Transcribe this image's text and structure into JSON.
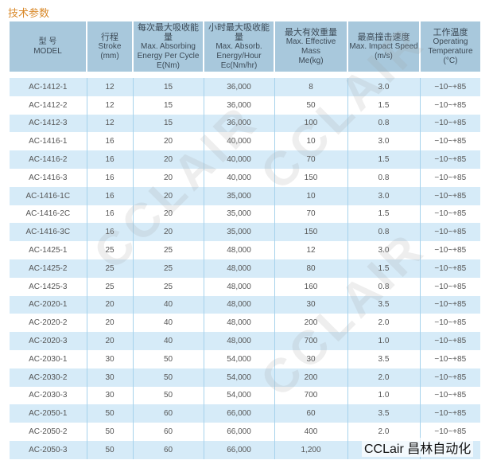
{
  "title": "技术参数",
  "headers": [
    [
      "型 号",
      "MODEL"
    ],
    [
      "行程",
      "Stroke",
      "(mm)"
    ],
    [
      "每次最大吸收能量",
      "Max. Absorbing",
      "Energy Per Cycle",
      "E(Nm)"
    ],
    [
      "小时最大吸收能量",
      "Max. Absorb.",
      "Energy/Hour",
      "Ec(Nm/hr)"
    ],
    [
      "最大有效重量",
      "Max. Effective Mass",
      "Me(kg)"
    ],
    [
      "最高撞击速度",
      "Max. Impact Speed",
      "(m/s)"
    ],
    [
      "工作温度",
      "Operating",
      "Temperature",
      "(°C)"
    ]
  ],
  "rows": [
    [
      "AC-1412-1",
      "12",
      "15",
      "36,000",
      "8",
      "3.0",
      "−10~+85"
    ],
    [
      "AC-1412-2",
      "12",
      "15",
      "36,000",
      "50",
      "1.5",
      "−10~+85"
    ],
    [
      "AC-1412-3",
      "12",
      "15",
      "36,000",
      "100",
      "0.8",
      "−10~+85"
    ],
    [
      "AC-1416-1",
      "16",
      "20",
      "40,000",
      "10",
      "3.0",
      "−10~+85"
    ],
    [
      "AC-1416-2",
      "16",
      "20",
      "40,000",
      "70",
      "1.5",
      "−10~+85"
    ],
    [
      "AC-1416-3",
      "16",
      "20",
      "40,000",
      "150",
      "0.8",
      "−10~+85"
    ],
    [
      "AC-1416-1C",
      "16",
      "20",
      "35,000",
      "10",
      "3.0",
      "−10~+85"
    ],
    [
      "AC-1416-2C",
      "16",
      "20",
      "35,000",
      "70",
      "1.5",
      "−10~+85"
    ],
    [
      "AC-1416-3C",
      "16",
      "20",
      "35,000",
      "150",
      "0.8",
      "−10~+85"
    ],
    [
      "AC-1425-1",
      "25",
      "25",
      "48,000",
      "12",
      "3.0",
      "−10~+85"
    ],
    [
      "AC-1425-2",
      "25",
      "25",
      "48,000",
      "80",
      "1.5",
      "−10~+85"
    ],
    [
      "AC-1425-3",
      "25",
      "25",
      "48,000",
      "160",
      "0.8",
      "−10~+85"
    ],
    [
      "AC-2020-1",
      "20",
      "40",
      "48,000",
      "30",
      "3.5",
      "−10~+85"
    ],
    [
      "AC-2020-2",
      "20",
      "40",
      "48,000",
      "200",
      "2.0",
      "−10~+85"
    ],
    [
      "AC-2020-3",
      "20",
      "40",
      "48,000",
      "700",
      "1.0",
      "−10~+85"
    ],
    [
      "AC-2030-1",
      "30",
      "50",
      "54,000",
      "30",
      "3.5",
      "−10~+85"
    ],
    [
      "AC-2030-2",
      "30",
      "50",
      "54,000",
      "200",
      "2.0",
      "−10~+85"
    ],
    [
      "AC-2030-3",
      "30",
      "50",
      "54,000",
      "700",
      "1.0",
      "−10~+85"
    ],
    [
      "AC-2050-1",
      "50",
      "60",
      "66,000",
      "60",
      "3.5",
      "−10~+85"
    ],
    [
      "AC-2050-2",
      "50",
      "60",
      "66,000",
      "400",
      "2.0",
      "−10~+85"
    ],
    [
      "AC-2050-3",
      "50",
      "60",
      "66,000",
      "1,200",
      "",
      ""
    ]
  ],
  "watermark": "CCLAIR",
  "logo": "CCLair 昌林自动化"
}
